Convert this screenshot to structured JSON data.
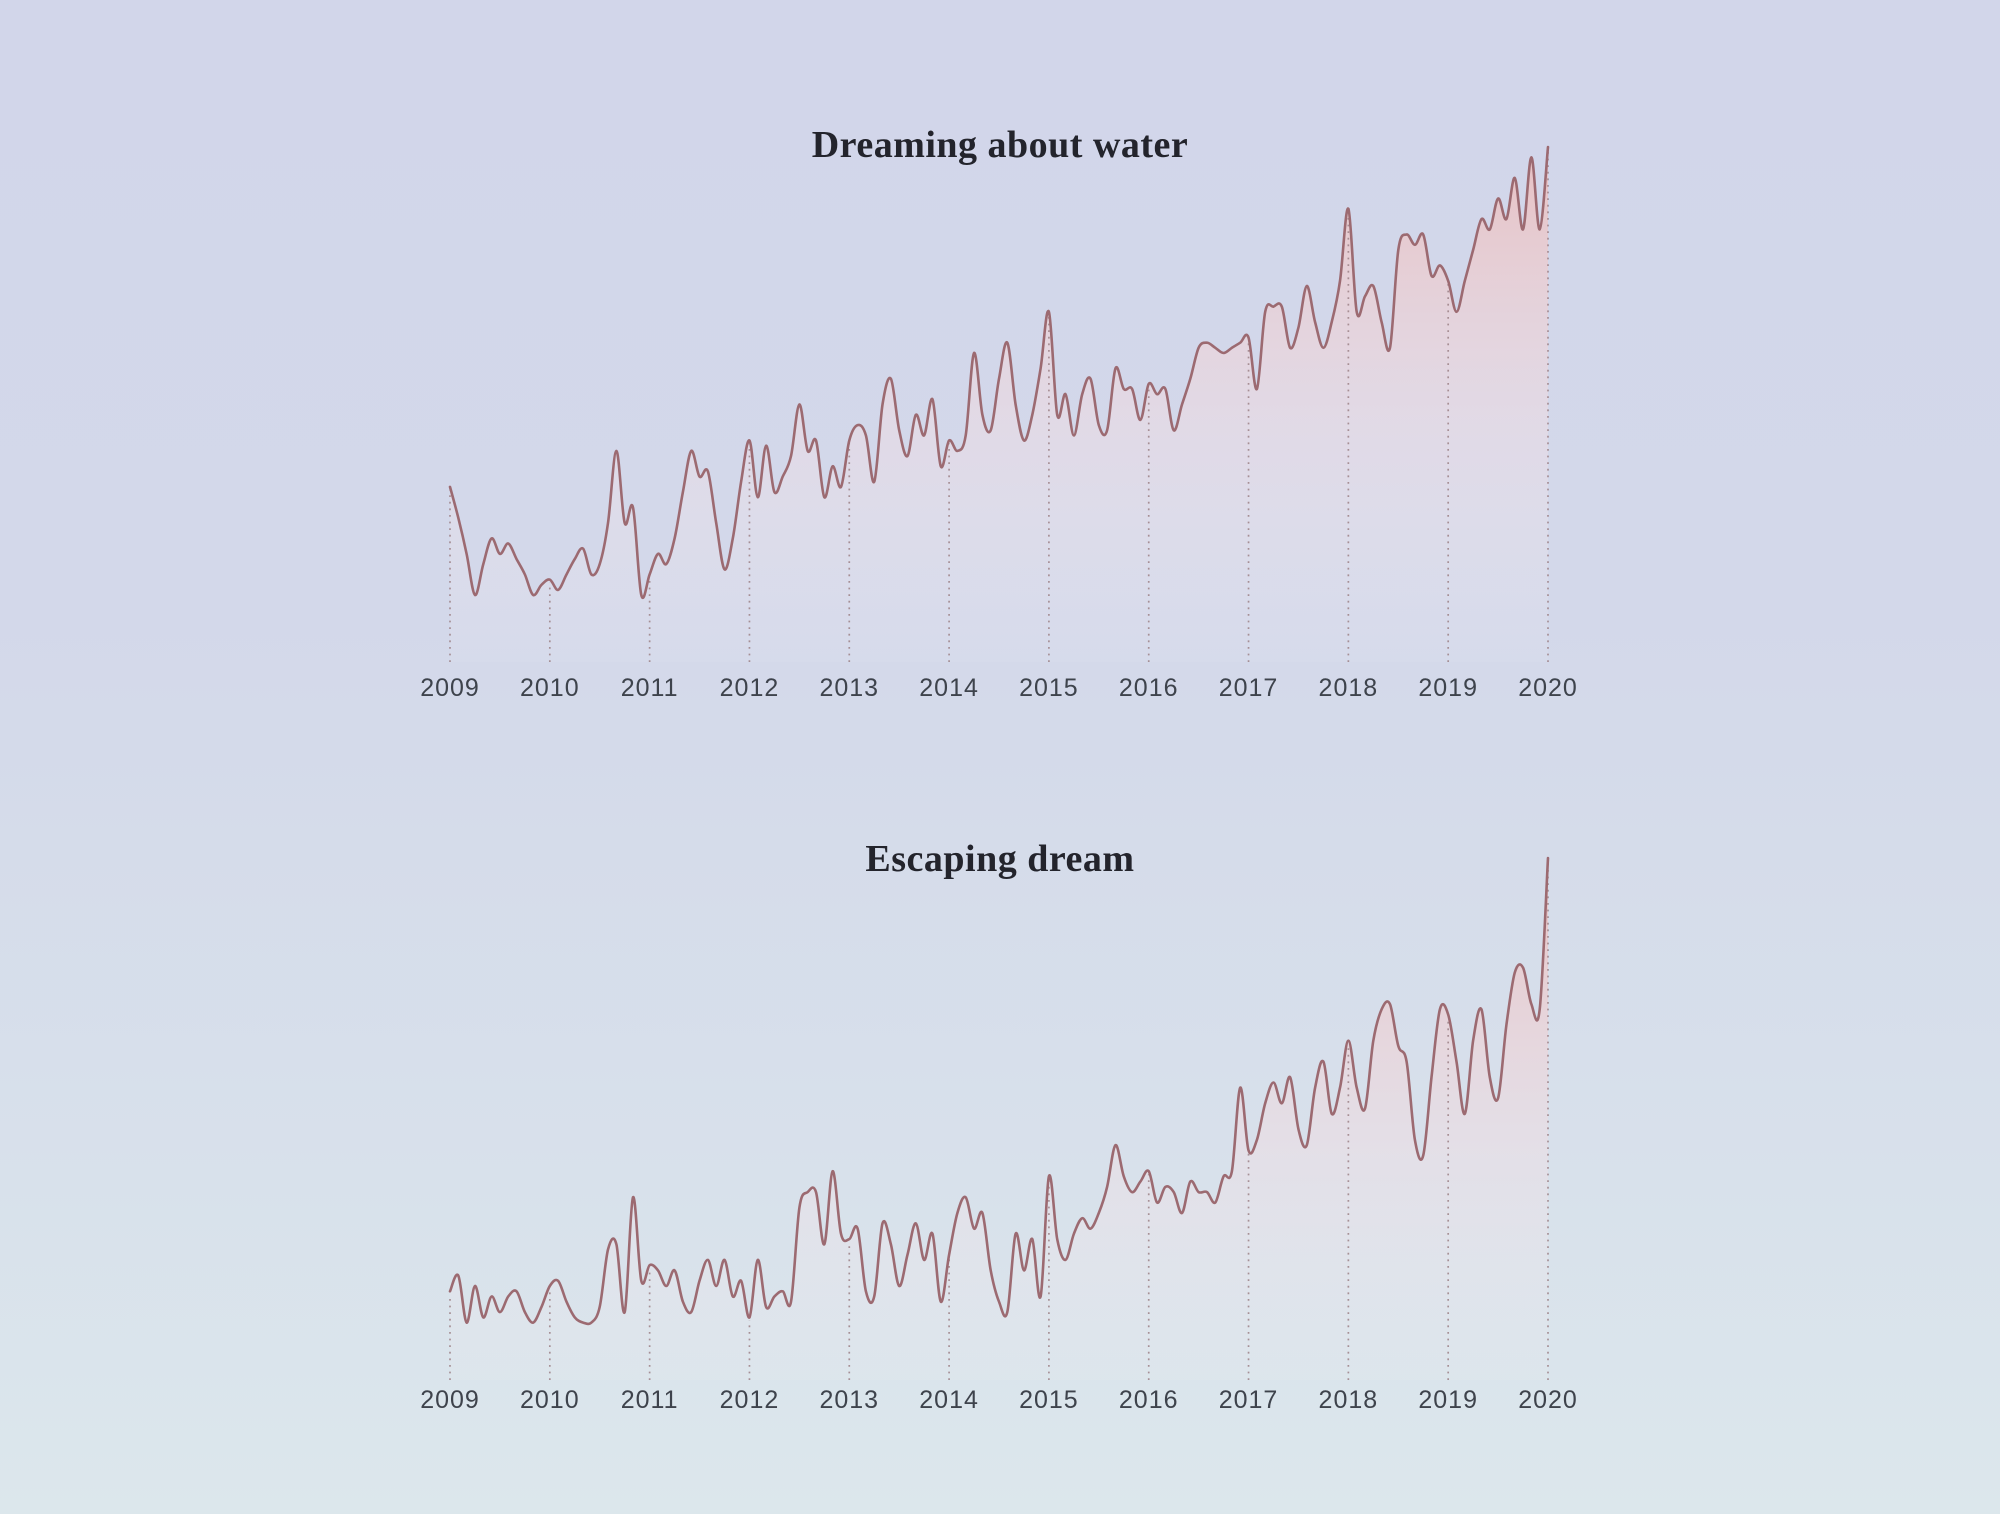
{
  "page": {
    "background_gradient_top": "#d2d6ea",
    "background_gradient_bottom": "#dce7ec"
  },
  "chart_data": [
    {
      "type": "area",
      "title": "Dreaming about water",
      "x_tick_labels": [
        "2009",
        "2010",
        "2011",
        "2012",
        "2013",
        "2014",
        "2015",
        "2016",
        "2017",
        "2018",
        "2019",
        "2020"
      ],
      "x_range": [
        2009,
        2020
      ],
      "points_per_year": 12,
      "ylim": [
        0,
        100
      ],
      "grid": "dotted vertical line at each year tick, from baseline up to the curve",
      "legend": "none",
      "line_color": "#9c6a71",
      "grid_color": "#9d8287",
      "tick_label_color": "#3e434c",
      "title_color": "#23242c",
      "fill_gradient": [
        "rgba(234,190,190,0.9)",
        "rgba(242,221,226,0.45)",
        "rgba(246,240,244,0.08)"
      ],
      "values": [
        34,
        28,
        21,
        13,
        19,
        24,
        21,
        23,
        20,
        17,
        13,
        15,
        16,
        14,
        17,
        20,
        22,
        17,
        19,
        27,
        41,
        27,
        30,
        13,
        17,
        21,
        19,
        24,
        33,
        41,
        36,
        37,
        27,
        18,
        24,
        35,
        43,
        32,
        42,
        33,
        36,
        40,
        50,
        41,
        43,
        32,
        38,
        34,
        43,
        46,
        44,
        35,
        50,
        55,
        45,
        40,
        48,
        44,
        51,
        38,
        43,
        41,
        44,
        60,
        48,
        45,
        55,
        62,
        50,
        43,
        48,
        57,
        68,
        48,
        52,
        44,
        52,
        55,
        46,
        45,
        57,
        53,
        53,
        47,
        54,
        52,
        53,
        45,
        50,
        55,
        61,
        62,
        61,
        60,
        61,
        62,
        63,
        53,
        68,
        69,
        69,
        61,
        65,
        73,
        66,
        61,
        66,
        74,
        88,
        68,
        71,
        73,
        66,
        61,
        80,
        83,
        81,
        83,
        75,
        77,
        74,
        68,
        74,
        80,
        86,
        84,
        90,
        86,
        94,
        84,
        98,
        84,
        100
      ]
    },
    {
      "type": "area",
      "title": "Escaping dream",
      "x_tick_labels": [
        "2009",
        "2010",
        "2011",
        "2012",
        "2013",
        "2014",
        "2015",
        "2016",
        "2017",
        "2018",
        "2019",
        "2020"
      ],
      "x_range": [
        2009,
        2020
      ],
      "points_per_year": 12,
      "ylim": [
        0,
        100
      ],
      "grid": "dotted vertical line at each year tick, from baseline up to the curve",
      "legend": "none",
      "line_color": "#9c6a71",
      "grid_color": "#9d8287",
      "tick_label_color": "#3e434c",
      "title_color": "#23242c",
      "fill_gradient": [
        "rgba(234,190,190,0.9)",
        "rgba(242,221,226,0.45)",
        "rgba(246,240,244,0.08)"
      ],
      "values": [
        17,
        20,
        11,
        18,
        12,
        16,
        13,
        16,
        17,
        13,
        11,
        14,
        18,
        19,
        15,
        12,
        11,
        11,
        14,
        25,
        26,
        13,
        35,
        19,
        22,
        21,
        18,
        21,
        15,
        13,
        19,
        23,
        18,
        23,
        16,
        19,
        12,
        23,
        14,
        16,
        17,
        15,
        33,
        36,
        36,
        26,
        40,
        28,
        27,
        29,
        17,
        16,
        30,
        26,
        18,
        24,
        30,
        23,
        28,
        15,
        24,
        32,
        35,
        29,
        32,
        21,
        15,
        13,
        28,
        21,
        27,
        16,
        39,
        27,
        23,
        28,
        31,
        29,
        32,
        37,
        45,
        39,
        36,
        38,
        40,
        34,
        37,
        36,
        32,
        38,
        36,
        36,
        34,
        39,
        40,
        56,
        44,
        46,
        53,
        57,
        53,
        58,
        48,
        45,
        56,
        61,
        51,
        56,
        65,
        56,
        52,
        65,
        71,
        72,
        64,
        61,
        46,
        43,
        58,
        71,
        70,
        61,
        51,
        65,
        71,
        58,
        54,
        68,
        78,
        79,
        72,
        71,
        100
      ]
    }
  ]
}
